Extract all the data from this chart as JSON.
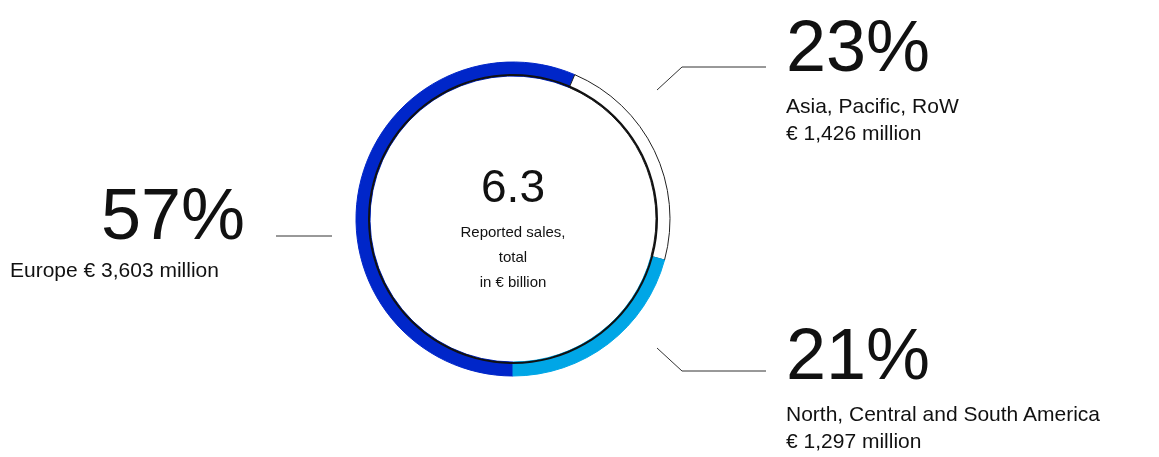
{
  "chart_data": {
    "type": "donut",
    "categories": [
      "Europe € 3,603 million",
      "Asia, Pacific, RoW\n€ 1,426 million",
      "North, Central and South America\n€ 1,297 million"
    ],
    "values": [
      57,
      23,
      21
    ],
    "value_labels": [
      "57%",
      "23%",
      "21%"
    ],
    "colors": [
      "#0026c9",
      "#ffffff",
      "#00a6e6"
    ],
    "annotations": [
      "6.3",
      "Reported sales,",
      "total",
      "in € billion"
    ],
    "legend": false
  }
}
